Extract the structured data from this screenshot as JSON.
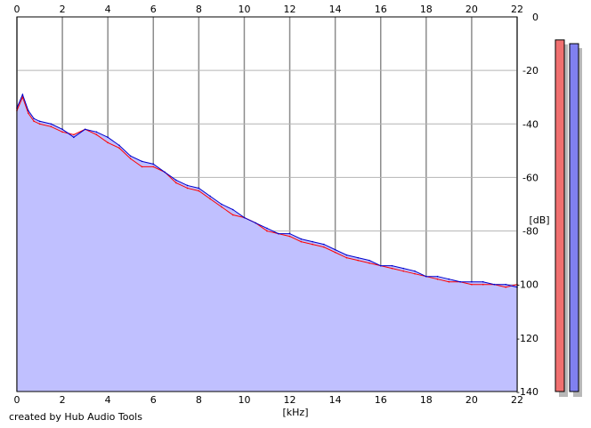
{
  "chart_data": {
    "type": "line",
    "xlabel": "[kHz]",
    "ylabel": "[dB]",
    "xlim": [
      0,
      22
    ],
    "ylim": [
      -140,
      0
    ],
    "x_ticks": [
      0,
      2,
      4,
      6,
      8,
      10,
      12,
      14,
      16,
      18,
      20,
      22
    ],
    "y_ticks": [
      0,
      -20,
      -40,
      -60,
      -80,
      -100,
      -120,
      -140
    ],
    "y_tick_labels": [
      "0",
      "-20",
      "-40",
      "-60",
      "-80",
      "-100",
      "-120",
      "-140"
    ],
    "grid": true,
    "x": [
      0,
      0.25,
      0.5,
      0.75,
      1,
      1.5,
      2,
      2.5,
      3,
      3.5,
      4,
      4.5,
      5,
      5.5,
      6,
      6.5,
      7,
      7.5,
      8,
      8.5,
      9,
      9.5,
      10,
      10.5,
      11,
      11.5,
      12,
      12.5,
      13,
      13.5,
      14,
      14.5,
      15,
      15.5,
      16,
      16.5,
      17,
      17.5,
      18,
      18.5,
      19,
      19.5,
      20,
      20.5,
      21,
      21.5,
      22
    ],
    "series": [
      {
        "color": "#ff0000",
        "values": [
          -35,
          -30,
          -36,
          -39,
          -40,
          -41,
          -43,
          -44,
          -42,
          -44,
          -47,
          -49,
          -53,
          -56,
          -56,
          -58,
          -62,
          -64,
          -65,
          -68,
          -71,
          -74,
          -75,
          -77,
          -80,
          -81,
          -82,
          -84,
          -85,
          -86,
          -88,
          -90,
          -91,
          -92,
          -93,
          -94,
          -95,
          -96,
          -97,
          -98,
          -99,
          -99,
          -100,
          -100,
          -100,
          -101,
          -100
        ]
      },
      {
        "color": "#0000cc",
        "values": [
          -34,
          -29,
          -35,
          -38,
          -39,
          -40,
          -42,
          -45,
          -42,
          -43,
          -45,
          -48,
          -52,
          -54,
          -55,
          -58,
          -61,
          -63,
          -64,
          -67,
          -70,
          -72,
          -75,
          -77,
          -79,
          -81,
          -81,
          -83,
          -84,
          -85,
          -87,
          -89,
          -90,
          -91,
          -93,
          -93,
          -94,
          -95,
          -97,
          -97,
          -98,
          -99,
          -99,
          -99,
          -100,
          -100,
          -101
        ]
      }
    ],
    "fill_color": "#c0c0ff",
    "meters": [
      {
        "channel": "left",
        "color": "#f07070",
        "level": -8.6
      },
      {
        "channel": "right",
        "color": "#8080f0",
        "level": -10.0
      }
    ]
  },
  "footer": {
    "credit": "created by Hub Audio Tools"
  }
}
